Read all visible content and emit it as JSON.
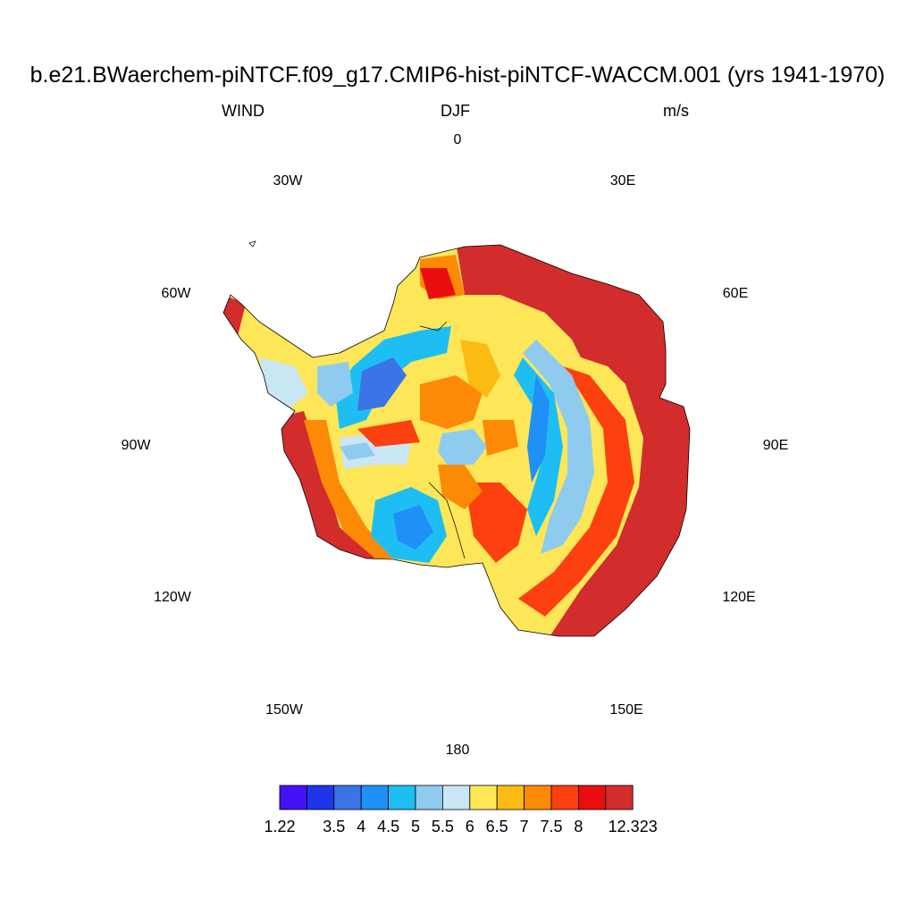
{
  "header": {
    "title": "b.e21.BWaerchem-piNTCF.f09_g17.CMIP6-hist-piNTCF-WACCM.001 (yrs 1941-1970)",
    "variable": "WIND",
    "season": "DJF",
    "units": "m/s"
  },
  "map": {
    "projection": "south polar stereographic",
    "region": "Antarctica",
    "longitude_labels": [
      {
        "id": "lon-0",
        "text": "0"
      },
      {
        "id": "lon-30e",
        "text": "30E"
      },
      {
        "id": "lon-60e",
        "text": "60E"
      },
      {
        "id": "lon-90e",
        "text": "90E"
      },
      {
        "id": "lon-120e",
        "text": "120E"
      },
      {
        "id": "lon-150e",
        "text": "150E"
      },
      {
        "id": "lon-180",
        "text": "180"
      },
      {
        "id": "lon-150w",
        "text": "150W"
      },
      {
        "id": "lon-120w",
        "text": "120W"
      },
      {
        "id": "lon-90w",
        "text": "90W"
      },
      {
        "id": "lon-60w",
        "text": "60W"
      },
      {
        "id": "lon-30w",
        "text": "30W"
      }
    ]
  },
  "colorbar": {
    "colors": [
      "#4410f5",
      "#1f35ea",
      "#3b74e6",
      "#1f90f5",
      "#1ebef5",
      "#8fcbee",
      "#c9e6f5",
      "#fde658",
      "#fcbb13",
      "#fd8a07",
      "#fd400f",
      "#ea0f0f",
      "#d22c2c"
    ],
    "labels": [
      "1.22",
      "3.5",
      "4",
      "4.5",
      "5",
      "5.5",
      "6",
      "6.5",
      "7",
      "7.5",
      "8",
      "12.323"
    ]
  }
}
